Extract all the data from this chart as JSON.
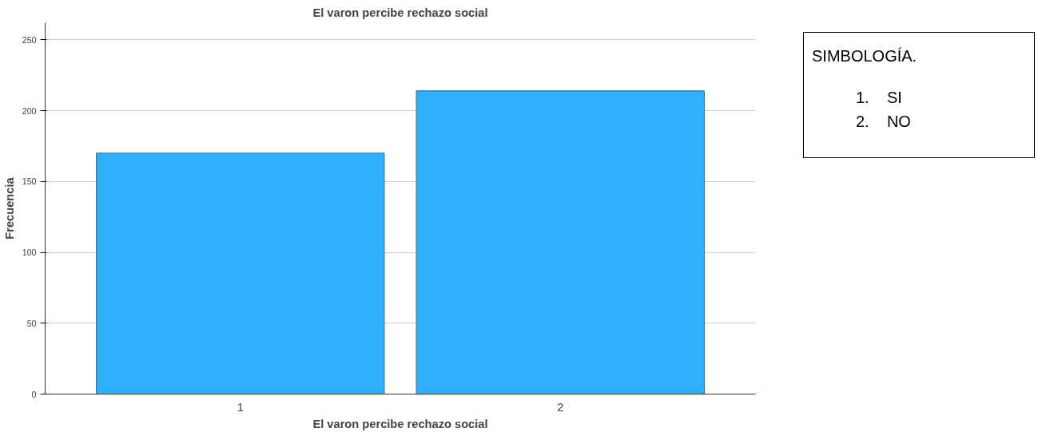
{
  "chart_data": {
    "type": "bar",
    "title": "El varon percibe rechazo social",
    "xlabel": "El varon percibe rechazo social",
    "ylabel": "Frecuencia",
    "categories": [
      "1",
      "2"
    ],
    "values": [
      170,
      214
    ],
    "color": "#31aefe",
    "ylim": [
      0,
      262
    ],
    "yticks": [
      0,
      50,
      100,
      150,
      200,
      250
    ],
    "grid": "y",
    "annotations": [
      "SIMBOLOGÍA.",
      "1.    SI",
      "2.    NO"
    ]
  }
}
